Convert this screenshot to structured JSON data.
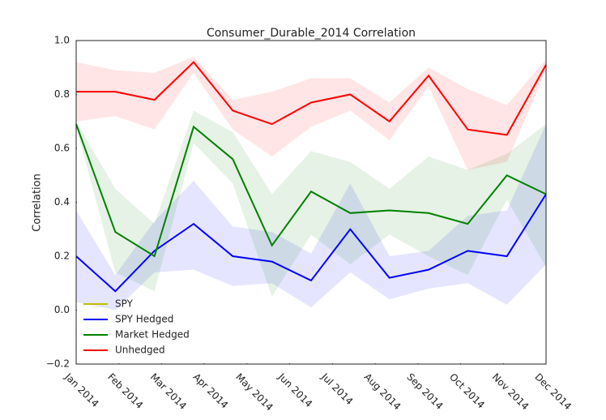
{
  "chart_data": {
    "type": "line",
    "title": "Consumer_Durable_2014 Correlation",
    "ylabel": "Correlation",
    "x": [
      0,
      1,
      2,
      3,
      4,
      5,
      6,
      7,
      8,
      9,
      10,
      11,
      12
    ],
    "xlim": [
      0,
      12
    ],
    "xticks": [
      {
        "value": 0,
        "label": "Jan 2014"
      },
      {
        "value": 1.09,
        "label": "Feb 2014"
      },
      {
        "value": 2.18,
        "label": "Mar 2014"
      },
      {
        "value": 3.27,
        "label": "Apr 2014"
      },
      {
        "value": 4.36,
        "label": "May 2014"
      },
      {
        "value": 5.45,
        "label": "Jun 2014"
      },
      {
        "value": 6.55,
        "label": "Jul 2014"
      },
      {
        "value": 7.64,
        "label": "Aug 2014"
      },
      {
        "value": 8.73,
        "label": "Sep 2014"
      },
      {
        "value": 9.82,
        "label": "Oct 2014"
      },
      {
        "value": 10.91,
        "label": "Nov 2014"
      },
      {
        "value": 12,
        "label": "Dec 2014"
      }
    ],
    "ylim": [
      -0.2,
      1.0
    ],
    "yticks": [
      {
        "value": -0.2,
        "label": "−0.2"
      },
      {
        "value": 0,
        "label": "0.0"
      },
      {
        "value": 0.2,
        "label": "0.2"
      },
      {
        "value": 0.4,
        "label": "0.4"
      },
      {
        "value": 0.6,
        "label": "0.6"
      },
      {
        "value": 0.8,
        "label": "0.8"
      },
      {
        "value": 1.0,
        "label": "1.0"
      }
    ],
    "legend": "lower left",
    "series": [
      {
        "name": "SPY",
        "color": "#bfbf00"
      },
      {
        "name": "SPY Hedged",
        "color": "#0000ff",
        "values": [
          0.2,
          0.07,
          0.22,
          0.32,
          0.2,
          0.18,
          0.11,
          0.3,
          0.12,
          0.15,
          0.22,
          0.2,
          0.43
        ],
        "upper": [
          0.37,
          0.13,
          0.33,
          0.48,
          0.31,
          0.29,
          0.21,
          0.47,
          0.2,
          0.22,
          0.35,
          0.37,
          0.69
        ],
        "lower": [
          0.03,
          0.0,
          0.14,
          0.15,
          0.09,
          0.1,
          0.01,
          0.14,
          0.04,
          0.08,
          0.1,
          0.02,
          0.17
        ]
      },
      {
        "name": "Market Hedged",
        "color": "#008000",
        "values": [
          0.69,
          0.29,
          0.2,
          0.68,
          0.56,
          0.24,
          0.44,
          0.36,
          0.37,
          0.36,
          0.32,
          0.5,
          0.43
        ],
        "upper": [
          0.7,
          0.45,
          0.32,
          0.74,
          0.66,
          0.43,
          0.59,
          0.55,
          0.45,
          0.57,
          0.52,
          0.58,
          0.69
        ],
        "lower": [
          0.68,
          0.14,
          0.07,
          0.62,
          0.47,
          0.05,
          0.28,
          0.17,
          0.28,
          0.2,
          0.13,
          0.41,
          0.16
        ]
      },
      {
        "name": "Unhedged",
        "color": "#ff0000",
        "values": [
          0.81,
          0.81,
          0.78,
          0.92,
          0.74,
          0.69,
          0.77,
          0.8,
          0.7,
          0.87,
          0.67,
          0.65,
          0.91
        ],
        "upper": [
          0.92,
          0.89,
          0.88,
          0.94,
          0.78,
          0.81,
          0.86,
          0.86,
          0.77,
          0.9,
          0.82,
          0.76,
          0.93
        ],
        "lower": [
          0.7,
          0.72,
          0.67,
          0.88,
          0.67,
          0.57,
          0.68,
          0.74,
          0.63,
          0.83,
          0.52,
          0.55,
          0.89
        ]
      }
    ]
  }
}
